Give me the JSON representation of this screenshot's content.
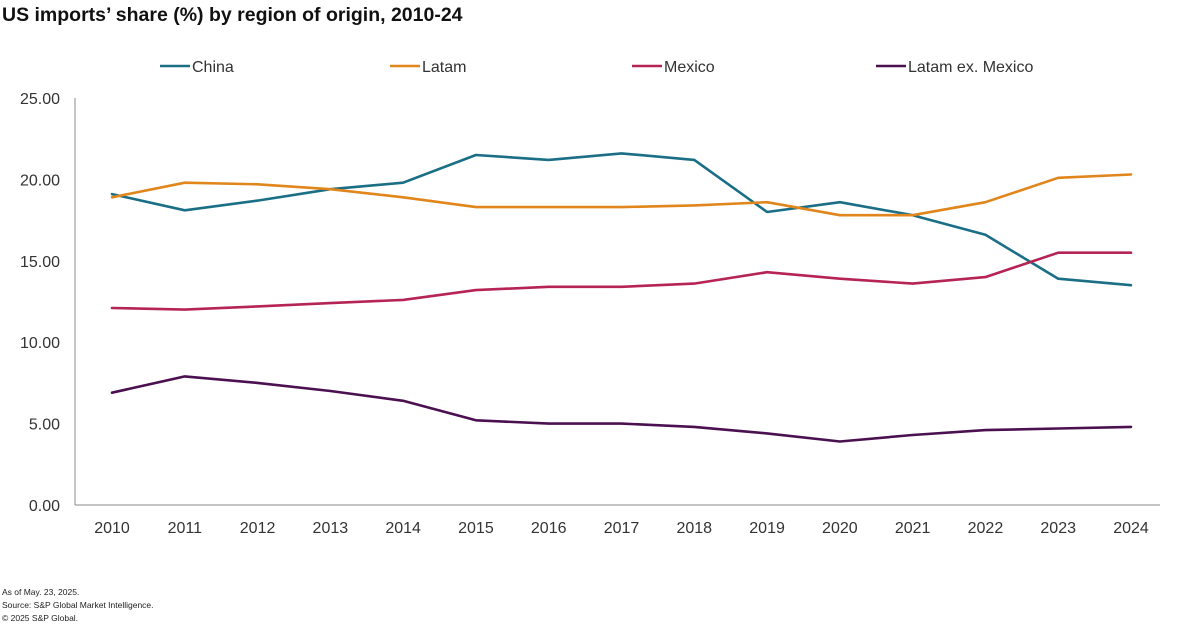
{
  "chart_data": {
    "type": "line",
    "title": "US imports’ share (%) by region of origin, 2010-24",
    "xlabel": "",
    "ylabel": "",
    "categories": [
      "2010",
      "2011",
      "2012",
      "2013",
      "2014",
      "2015",
      "2016",
      "2017",
      "2018",
      "2019",
      "2020",
      "2021",
      "2022",
      "2023",
      "2024"
    ],
    "ylim": [
      0,
      25
    ],
    "yticks": [
      "0.00",
      "5.00",
      "10.00",
      "15.00",
      "20.00",
      "25.00"
    ],
    "grid": false,
    "legend_position": "top",
    "series": [
      {
        "name": "China",
        "color": "#1a6e85",
        "values": [
          19.1,
          18.1,
          18.7,
          19.4,
          19.8,
          21.5,
          21.2,
          21.6,
          21.2,
          18.0,
          18.6,
          17.8,
          16.6,
          13.9,
          13.5
        ]
      },
      {
        "name": "Latam",
        "color": "#e0861c",
        "values": [
          18.9,
          19.8,
          19.7,
          19.4,
          18.9,
          18.3,
          18.3,
          18.3,
          18.4,
          18.6,
          17.8,
          17.8,
          18.6,
          20.1,
          20.3
        ]
      },
      {
        "name": "Mexico",
        "color": "#b52454",
        "values": [
          12.1,
          12.0,
          12.2,
          12.4,
          12.6,
          13.2,
          13.4,
          13.4,
          13.6,
          14.3,
          13.9,
          13.6,
          14.0,
          15.5,
          15.5
        ]
      },
      {
        "name": "Latam ex. Mexico",
        "color": "#4b1050",
        "values": [
          6.9,
          7.9,
          7.5,
          7.0,
          6.4,
          5.2,
          5.0,
          5.0,
          4.8,
          4.4,
          3.9,
          4.3,
          4.6,
          4.7,
          4.8
        ]
      }
    ]
  },
  "footnotes": {
    "as_of": "As of May. 23, 2025.",
    "source": "Source: S&P Global Market Intelligence.",
    "copyright": "© 2025 S&P Global."
  }
}
